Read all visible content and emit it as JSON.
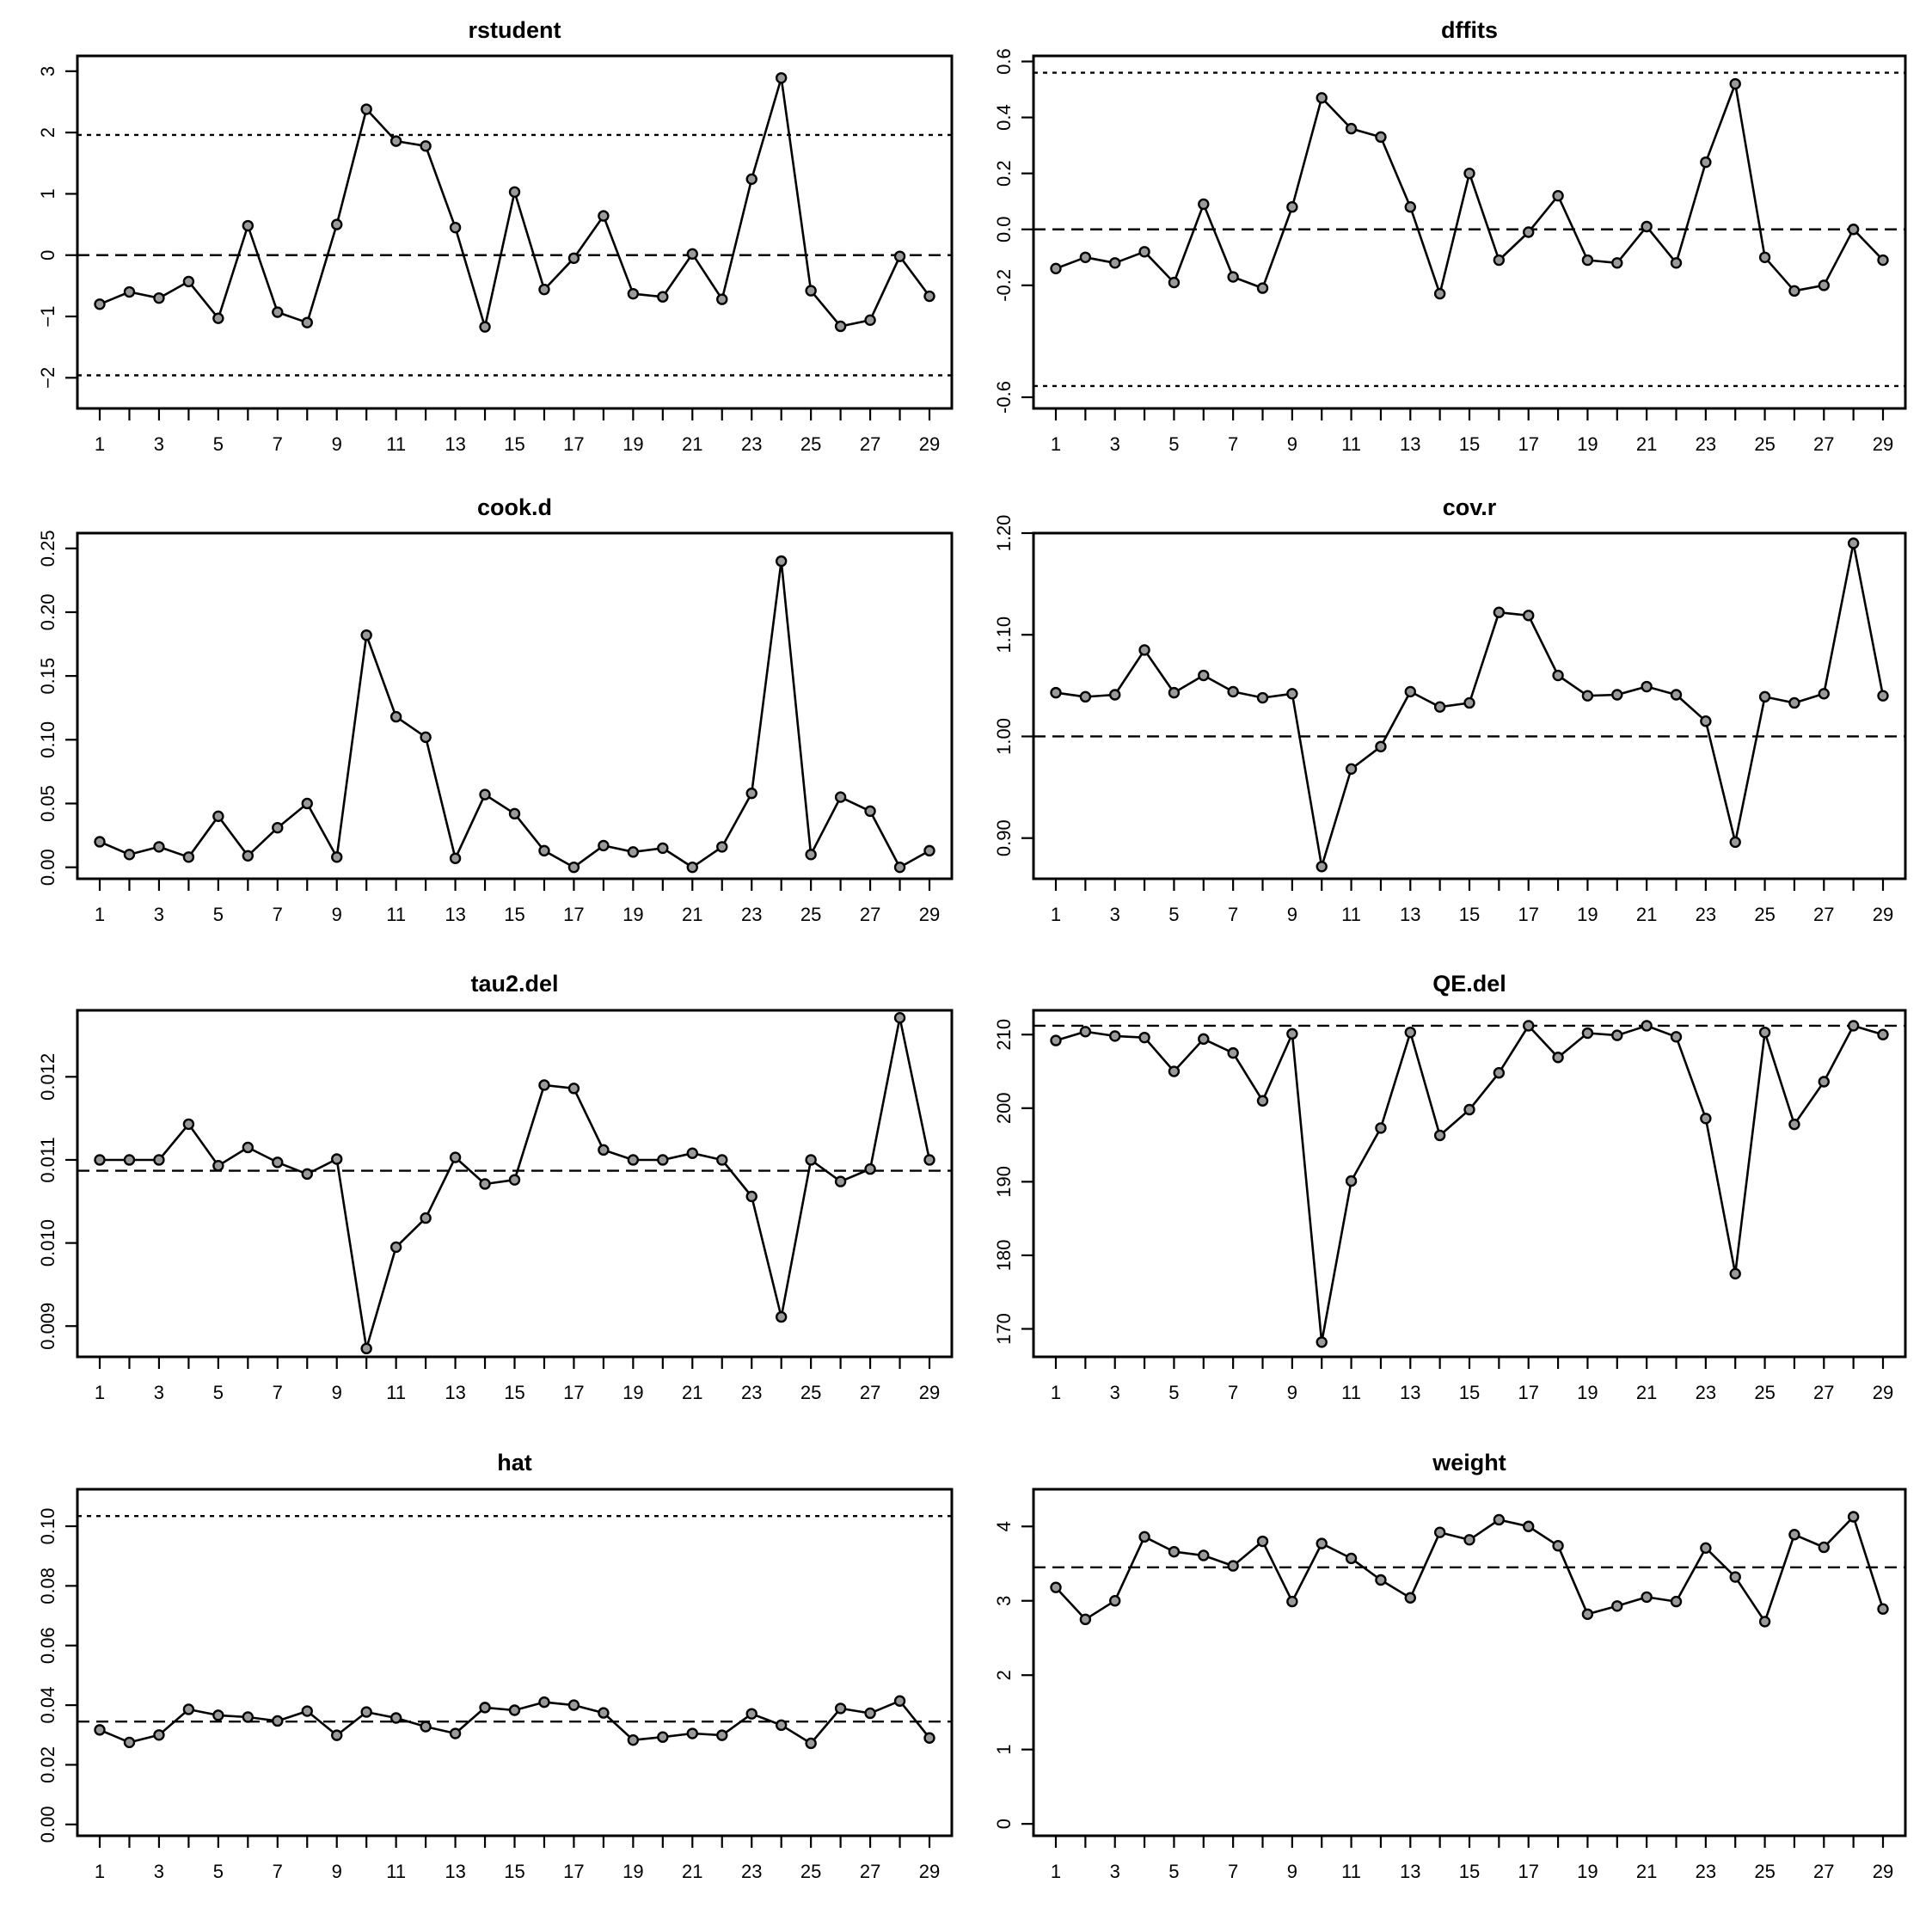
{
  "chart_data": [
    {
      "type": "line",
      "title": "rstudent",
      "x": [
        1,
        2,
        3,
        4,
        5,
        6,
        7,
        8,
        9,
        10,
        11,
        12,
        13,
        14,
        15,
        16,
        17,
        18,
        19,
        20,
        21,
        22,
        23,
        24,
        25,
        26,
        27,
        28,
        29
      ],
      "x_tick_labels": [
        "1",
        "3",
        "5",
        "7",
        "9",
        "11",
        "13",
        "15",
        "17",
        "19",
        "21",
        "23",
        "25",
        "27",
        "29"
      ],
      "values": [
        -0.8,
        -0.6,
        -0.7,
        -0.43,
        -1.03,
        0.48,
        -0.93,
        -1.1,
        0.5,
        2.38,
        1.86,
        1.78,
        0.45,
        -1.17,
        1.03,
        -0.56,
        -0.05,
        0.64,
        -0.63,
        -0.68,
        0.02,
        -0.72,
        1.24,
        2.89,
        -0.58,
        -1.16,
        -1.06,
        -0.02,
        -0.67
      ],
      "ylim": [
        -2.5,
        3.25
      ],
      "y_ticks": [
        -2,
        -1,
        0,
        1,
        2,
        3
      ],
      "y_tick_labels": [
        "−2",
        "−1",
        "0",
        "1",
        "2",
        "3"
      ],
      "reference_lines": [
        {
          "y": 0,
          "style": "dashed"
        },
        {
          "y": 1.96,
          "style": "dotted"
        },
        {
          "y": -1.96,
          "style": "dotted"
        }
      ],
      "grid": false
    },
    {
      "type": "line",
      "title": "dffits",
      "x": [
        1,
        2,
        3,
        4,
        5,
        6,
        7,
        8,
        9,
        10,
        11,
        12,
        13,
        14,
        15,
        16,
        17,
        18,
        19,
        20,
        21,
        22,
        23,
        24,
        25,
        26,
        27,
        28,
        29
      ],
      "x_tick_labels": [
        "1",
        "3",
        "5",
        "7",
        "9",
        "11",
        "13",
        "15",
        "17",
        "19",
        "21",
        "23",
        "25",
        "27",
        "29"
      ],
      "values": [
        -0.14,
        -0.1,
        -0.12,
        -0.08,
        -0.19,
        0.09,
        -0.17,
        -0.21,
        0.08,
        0.47,
        0.36,
        0.33,
        0.08,
        -0.23,
        0.2,
        -0.11,
        -0.01,
        0.12,
        -0.11,
        -0.12,
        0.01,
        -0.12,
        0.24,
        0.52,
        -0.1,
        -0.22,
        -0.2,
        0.0,
        -0.11
      ],
      "ylim": [
        -0.64,
        0.62
      ],
      "y_ticks": [
        -0.6,
        -0.2,
        0.0,
        0.2,
        0.4,
        0.6
      ],
      "y_tick_labels": [
        "-0.6",
        "-0.2",
        "0.0",
        "0.2",
        "0.4",
        "0.6"
      ],
      "reference_lines": [
        {
          "y": 0,
          "style": "dashed"
        },
        {
          "y": 0.56,
          "style": "dotted"
        },
        {
          "y": -0.56,
          "style": "dotted"
        }
      ],
      "grid": false
    },
    {
      "type": "line",
      "title": "cook.d",
      "x": [
        1,
        2,
        3,
        4,
        5,
        6,
        7,
        8,
        9,
        10,
        11,
        12,
        13,
        14,
        15,
        16,
        17,
        18,
        19,
        20,
        21,
        22,
        23,
        24,
        25,
        26,
        27,
        28,
        29
      ],
      "x_tick_labels": [
        "1",
        "3",
        "5",
        "7",
        "9",
        "11",
        "13",
        "15",
        "17",
        "19",
        "21",
        "23",
        "25",
        "27",
        "29"
      ],
      "values": [
        0.02,
        0.01,
        0.016,
        0.008,
        0.04,
        0.009,
        0.031,
        0.05,
        0.008,
        0.182,
        0.118,
        0.102,
        0.007,
        0.057,
        0.042,
        0.013,
        0.0,
        0.017,
        0.012,
        0.015,
        0.0,
        0.016,
        0.058,
        0.24,
        0.01,
        0.055,
        0.044,
        0.0,
        0.013
      ],
      "ylim": [
        -0.009,
        0.262
      ],
      "y_ticks": [
        0,
        0.05,
        0.1,
        0.15,
        0.2,
        0.25
      ],
      "y_tick_labels": [
        "0.00",
        "0.05",
        "0.10",
        "0.15",
        "0.20",
        "0.25"
      ],
      "reference_lines": [],
      "grid": false
    },
    {
      "type": "line",
      "title": "cov.r",
      "x": [
        1,
        2,
        3,
        4,
        5,
        6,
        7,
        8,
        9,
        10,
        11,
        12,
        13,
        14,
        15,
        16,
        17,
        18,
        19,
        20,
        21,
        22,
        23,
        24,
        25,
        26,
        27,
        28,
        29
      ],
      "x_tick_labels": [
        "1",
        "3",
        "5",
        "7",
        "9",
        "11",
        "13",
        "15",
        "17",
        "19",
        "21",
        "23",
        "25",
        "27",
        "29"
      ],
      "values": [
        1.043,
        1.039,
        1.041,
        1.085,
        1.043,
        1.06,
        1.044,
        1.038,
        1.042,
        0.872,
        0.968,
        0.99,
        1.044,
        1.029,
        1.033,
        1.122,
        1.119,
        1.06,
        1.04,
        1.041,
        1.049,
        1.041,
        1.015,
        0.896,
        1.039,
        1.033,
        1.042,
        1.19,
        1.04
      ],
      "ylim": [
        0.86,
        1.2
      ],
      "y_ticks": [
        0.9,
        1.0,
        1.1,
        1.2
      ],
      "y_tick_labels": [
        "0.90",
        "1.00",
        "1.10",
        "1.20"
      ],
      "reference_lines": [
        {
          "y": 1.0,
          "style": "dashed"
        }
      ],
      "grid": false
    },
    {
      "type": "line",
      "title": "tau2.del",
      "x": [
        1,
        2,
        3,
        4,
        5,
        6,
        7,
        8,
        9,
        10,
        11,
        12,
        13,
        14,
        15,
        16,
        17,
        18,
        19,
        20,
        21,
        22,
        23,
        24,
        25,
        26,
        27,
        28,
        29
      ],
      "x_tick_labels": [
        "1",
        "3",
        "5",
        "7",
        "9",
        "11",
        "13",
        "15",
        "17",
        "19",
        "21",
        "23",
        "25",
        "27",
        "29"
      ],
      "values": [
        0.011,
        0.011,
        0.011,
        0.01143,
        0.01093,
        0.01115,
        0.01097,
        0.01083,
        0.01101,
        0.00873,
        0.00995,
        0.0103,
        0.01103,
        0.01071,
        0.01076,
        0.0119,
        0.01186,
        0.01112,
        0.011,
        0.011,
        0.01108,
        0.011,
        0.01056,
        0.00911,
        0.011,
        0.01074,
        0.01089,
        0.01271,
        0.011
      ],
      "ylim": [
        0.00863,
        0.0128
      ],
      "y_ticks": [
        0.009,
        0.01,
        0.011,
        0.012
      ],
      "y_tick_labels": [
        "0.009",
        "0.010",
        "0.011",
        "0.012"
      ],
      "reference_lines": [
        {
          "y": 0.01087,
          "style": "dashed"
        }
      ],
      "grid": false
    },
    {
      "type": "line",
      "title": "QE.del",
      "x": [
        1,
        2,
        3,
        4,
        5,
        6,
        7,
        8,
        9,
        10,
        11,
        12,
        13,
        14,
        15,
        16,
        17,
        18,
        19,
        20,
        21,
        22,
        23,
        24,
        25,
        26,
        27,
        28,
        29
      ],
      "x_tick_labels": [
        "1",
        "3",
        "5",
        "7",
        "9",
        "11",
        "13",
        "15",
        "17",
        "19",
        "21",
        "23",
        "25",
        "27",
        "29"
      ],
      "values": [
        209.2,
        210.4,
        209.8,
        209.6,
        205.0,
        209.4,
        207.5,
        201.0,
        210.1,
        168.2,
        190.1,
        197.3,
        210.3,
        196.3,
        199.8,
        204.8,
        211.2,
        206.9,
        210.2,
        209.9,
        211.2,
        209.7,
        198.6,
        177.5,
        210.3,
        197.8,
        203.6,
        211.2,
        210.0
      ],
      "ylim": [
        166.2,
        213.3
      ],
      "y_ticks": [
        170,
        180,
        190,
        200,
        210
      ],
      "y_tick_labels": [
        "170",
        "180",
        "190",
        "200",
        "210"
      ],
      "reference_lines": [
        {
          "y": 211.2,
          "style": "dashed"
        }
      ],
      "grid": false
    },
    {
      "type": "line",
      "title": "hat",
      "x": [
        1,
        2,
        3,
        4,
        5,
        6,
        7,
        8,
        9,
        10,
        11,
        12,
        13,
        14,
        15,
        16,
        17,
        18,
        19,
        20,
        21,
        22,
        23,
        24,
        25,
        26,
        27,
        28,
        29
      ],
      "x_tick_labels": [
        "1",
        "3",
        "5",
        "7",
        "9",
        "11",
        "13",
        "15",
        "17",
        "19",
        "21",
        "23",
        "25",
        "27",
        "29"
      ],
      "values": [
        0.0317,
        0.0275,
        0.03,
        0.0386,
        0.0366,
        0.036,
        0.0347,
        0.038,
        0.0299,
        0.0377,
        0.0357,
        0.0328,
        0.0305,
        0.0392,
        0.0383,
        0.041,
        0.04,
        0.0374,
        0.0283,
        0.0293,
        0.0305,
        0.0299,
        0.0371,
        0.0333,
        0.0272,
        0.0389,
        0.0373,
        0.0414,
        0.029
      ],
      "ylim": [
        -0.0038,
        0.1124
      ],
      "y_ticks": [
        0,
        0.02,
        0.04,
        0.06,
        0.08,
        0.1
      ],
      "y_tick_labels": [
        "0.00",
        "0.02",
        "0.04",
        "0.06",
        "0.08",
        "0.10"
      ],
      "reference_lines": [
        {
          "y": 0.0345,
          "style": "dashed"
        },
        {
          "y": 0.1034,
          "style": "dotted"
        }
      ],
      "grid": false
    },
    {
      "type": "line",
      "title": "weight",
      "x": [
        1,
        2,
        3,
        4,
        5,
        6,
        7,
        8,
        9,
        10,
        11,
        12,
        13,
        14,
        15,
        16,
        17,
        18,
        19,
        20,
        21,
        22,
        23,
        24,
        25,
        26,
        27,
        28,
        29
      ],
      "x_tick_labels": [
        "1",
        "3",
        "5",
        "7",
        "9",
        "11",
        "13",
        "15",
        "17",
        "19",
        "21",
        "23",
        "25",
        "27",
        "29"
      ],
      "values": [
        3.18,
        2.75,
        3.0,
        3.86,
        3.66,
        3.61,
        3.47,
        3.8,
        2.99,
        3.77,
        3.57,
        3.28,
        3.04,
        3.92,
        3.82,
        4.09,
        4.0,
        3.74,
        2.82,
        2.93,
        3.05,
        2.99,
        3.71,
        3.32,
        2.72,
        3.89,
        3.72,
        4.13,
        2.89
      ],
      "ylim": [
        -0.16,
        4.5
      ],
      "y_ticks": [
        0,
        1,
        2,
        3,
        4
      ],
      "y_tick_labels": [
        "0",
        "1",
        "2",
        "3",
        "4"
      ],
      "reference_lines": [
        {
          "y": 3.45,
          "style": "dashed"
        }
      ],
      "grid": false
    }
  ]
}
